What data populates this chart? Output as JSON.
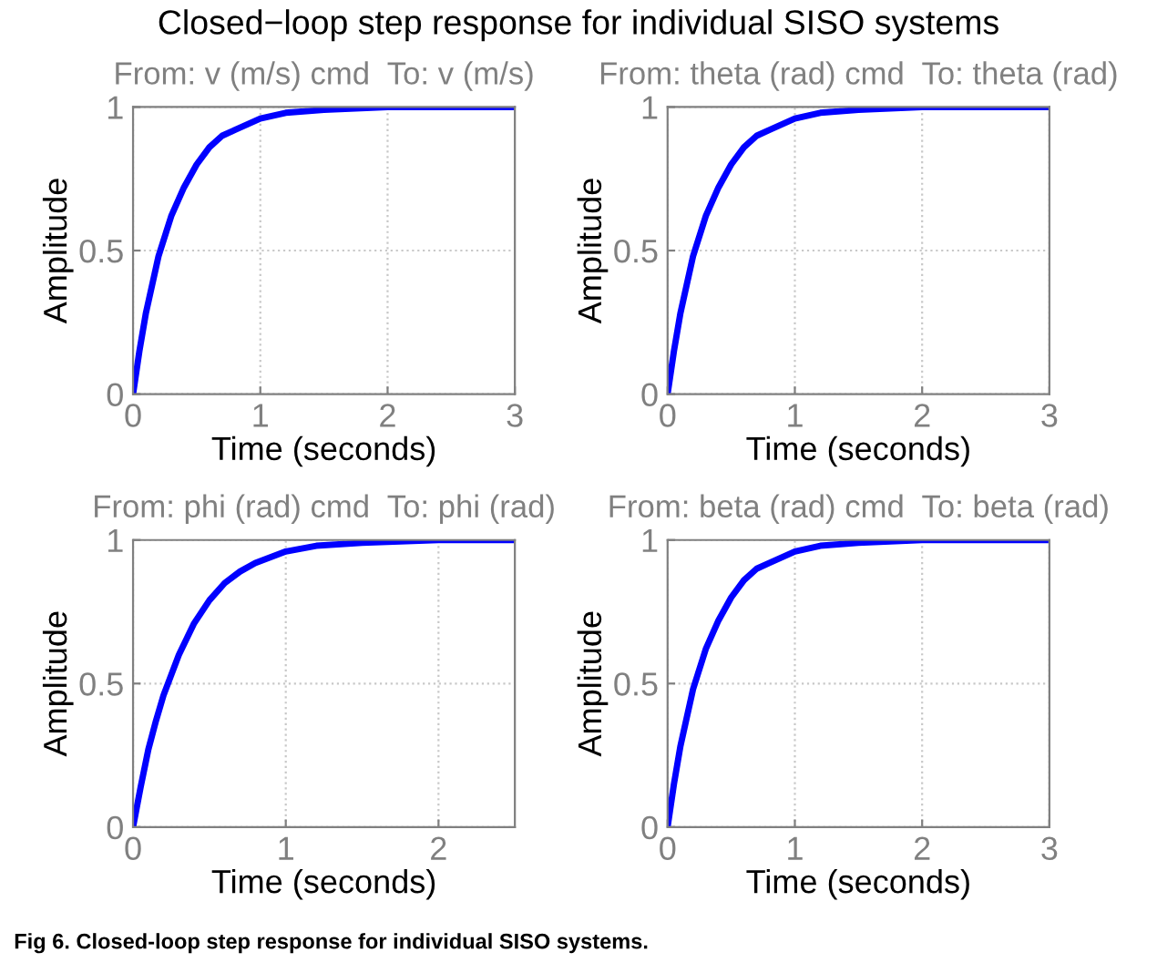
{
  "chart_data": [
    {
      "type": "line",
      "title": "From: v (m/s) cmd  To: v (m/s)",
      "xlabel": "Time (seconds)",
      "ylabel": "Amplitude",
      "annotations": [
        "Closed−loop step response for individual SISO systems"
      ],
      "grid": true,
      "xlim": [
        0,
        3
      ],
      "ylim": [
        0,
        1
      ],
      "xticks": [
        0,
        1,
        2,
        3
      ],
      "yticks": [
        0,
        0.5,
        1
      ],
      "x": [
        0,
        0.05,
        0.1,
        0.15,
        0.2,
        0.3,
        0.4,
        0.5,
        0.6,
        0.7,
        0.8,
        1.0,
        1.2,
        1.5,
        2,
        2.5,
        3
      ],
      "series": [
        {
          "color": "#0000ff",
          "values": [
            0,
            0.15,
            0.28,
            0.38,
            0.48,
            0.62,
            0.72,
            0.8,
            0.86,
            0.9,
            0.92,
            0.96,
            0.98,
            0.99,
            1,
            1,
            1
          ]
        }
      ]
    },
    {
      "type": "line",
      "title": "From: theta (rad) cmd  To: theta (rad)",
      "xlabel": "Time (seconds)",
      "ylabel": "Amplitude",
      "grid": true,
      "xlim": [
        0,
        3
      ],
      "ylim": [
        0,
        1
      ],
      "xticks": [
        0,
        1,
        2,
        3
      ],
      "yticks": [
        0,
        0.5,
        1
      ],
      "x": [
        0,
        0.05,
        0.1,
        0.15,
        0.2,
        0.3,
        0.4,
        0.5,
        0.6,
        0.7,
        0.8,
        1.0,
        1.2,
        1.5,
        2,
        2.5,
        3
      ],
      "series": [
        {
          "color": "#0000ff",
          "values": [
            0,
            0.15,
            0.28,
            0.38,
            0.48,
            0.62,
            0.72,
            0.8,
            0.86,
            0.9,
            0.92,
            0.96,
            0.98,
            0.99,
            1,
            1,
            1
          ]
        }
      ]
    },
    {
      "type": "line",
      "title": "From: phi (rad) cmd  To: phi (rad)",
      "xlabel": "Time (seconds)",
      "ylabel": "Amplitude",
      "grid": true,
      "xlim": [
        0,
        2.5
      ],
      "ylim": [
        0,
        1
      ],
      "xticks": [
        0,
        1,
        2
      ],
      "yticks": [
        0,
        0.5,
        1
      ],
      "x": [
        0,
        0.05,
        0.1,
        0.15,
        0.2,
        0.3,
        0.4,
        0.5,
        0.6,
        0.7,
        0.8,
        1.0,
        1.2,
        1.5,
        2,
        2.5
      ],
      "series": [
        {
          "color": "#0000ff",
          "values": [
            0,
            0.14,
            0.27,
            0.37,
            0.46,
            0.6,
            0.71,
            0.79,
            0.85,
            0.89,
            0.92,
            0.96,
            0.98,
            0.99,
            1,
            1
          ]
        }
      ]
    },
    {
      "type": "line",
      "title": "From: beta (rad) cmd  To: beta (rad)",
      "xlabel": "Time (seconds)",
      "ylabel": "Amplitude",
      "annotations": [
        "Fig 6. Closed-loop step response for individual SISO systems."
      ],
      "grid": true,
      "xlim": [
        0,
        3
      ],
      "ylim": [
        0,
        1
      ],
      "xticks": [
        0,
        1,
        2,
        3
      ],
      "yticks": [
        0,
        0.5,
        1
      ],
      "x": [
        0,
        0.05,
        0.1,
        0.15,
        0.2,
        0.3,
        0.4,
        0.5,
        0.6,
        0.7,
        0.8,
        1.0,
        1.2,
        1.5,
        2,
        2.5,
        3
      ],
      "series": [
        {
          "color": "#0000ff",
          "values": [
            0,
            0.15,
            0.28,
            0.38,
            0.48,
            0.62,
            0.72,
            0.8,
            0.86,
            0.9,
            0.92,
            0.96,
            0.98,
            0.99,
            1,
            1,
            1
          ]
        }
      ]
    }
  ]
}
